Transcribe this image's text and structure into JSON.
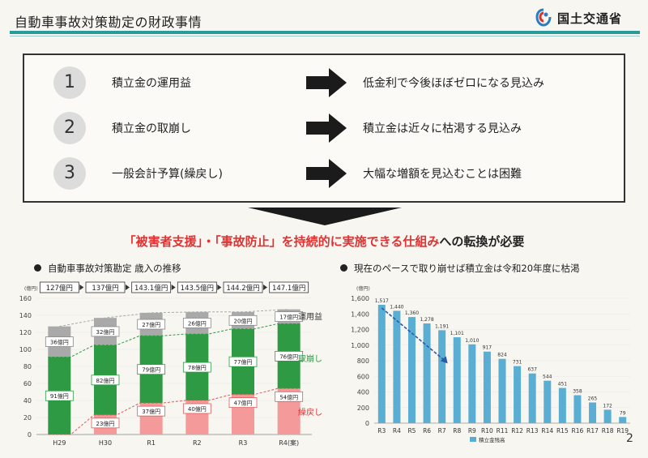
{
  "page_title": "自動車事故対策勘定の財政事情",
  "logo_text": "国土交通省",
  "rows": [
    {
      "num": "1",
      "label": "積立金の運用益",
      "result": "低金利で今後ほぼゼロになる見込み"
    },
    {
      "num": "2",
      "label": "積立金の取崩し",
      "result": "積立金は近々に枯渇する見込み"
    },
    {
      "num": "3",
      "label": "一般会計予算(繰戻し)",
      "result": "大幅な増額を見込むことは困難"
    }
  ],
  "headline": {
    "red": "「被害者支援」・「事故防止」を持続的に実施できる仕組み",
    "black": "への転換が必要"
  },
  "page_number": "2",
  "colors": {
    "accent": "#2a9a9a",
    "green": "#2e9a43",
    "gray": "#a9a9a9",
    "pink": "#f49a9a",
    "blue": "#5aaed4",
    "red": "#e03232"
  },
  "chart_data": [
    {
      "type": "bar",
      "stacked": true,
      "title": "自動車事故対策勘定 歳入の推移",
      "yunit": "(億円)",
      "ylim": [
        0,
        160
      ],
      "yticks": [
        0,
        20,
        40,
        60,
        80,
        100,
        120,
        140,
        160
      ],
      "categories": [
        "H29",
        "H30",
        "R1",
        "R2",
        "R3",
        "R4(案)"
      ],
      "totals": [
        "127億円",
        "137億円",
        "143.1億円",
        "143.5億円",
        "144.2億円",
        "147.1億円"
      ],
      "series": [
        {
          "name": "繰戻し",
          "values": [
            0,
            23,
            37,
            40,
            47,
            54
          ],
          "labels": [
            "",
            "23億円",
            "37億円",
            "40億円",
            "47億円",
            "54億円"
          ]
        },
        {
          "name": "取崩し",
          "values": [
            91,
            82,
            79,
            78,
            77,
            76
          ],
          "labels": [
            "91億円",
            "82億円",
            "79億円",
            "78億円",
            "77億円",
            "76億円"
          ]
        },
        {
          "name": "運用益",
          "values": [
            36,
            32,
            27,
            26,
            20,
            17
          ],
          "labels": [
            "36億円",
            "32億円",
            "27億円",
            "26億円",
            "20億円",
            "17億円"
          ]
        }
      ]
    },
    {
      "type": "bar",
      "title": "現在のペースで取り崩せば積立金は令和20年度に枯渇",
      "yunit": "(億円)",
      "ylim": [
        0,
        1600
      ],
      "yticks": [
        0,
        200,
        400,
        600,
        800,
        1000,
        1200,
        1400,
        1600
      ],
      "categories": [
        "R3",
        "R4",
        "R5",
        "R6",
        "R7",
        "R8",
        "R9",
        "R10",
        "R11",
        "R12",
        "R13",
        "R14",
        "R15",
        "R16",
        "R17",
        "R18",
        "R19"
      ],
      "series": [
        {
          "name": "積立金残高",
          "values": [
            1517,
            1440,
            1360,
            1278,
            1191,
            1101,
            1010,
            917,
            824,
            731,
            637,
            544,
            451,
            358,
            265,
            172,
            79
          ]
        }
      ],
      "tick_labels": [
        "0",
        "200",
        "400",
        "600",
        "800",
        "1,000",
        "1,200",
        "1,400",
        "1,600"
      ],
      "value_labels": [
        "1,517",
        "1,440",
        "1,360",
        "1,278",
        "1,191",
        "1,101",
        "1,010",
        "917",
        "824",
        "731",
        "637",
        "544",
        "451",
        "358",
        "265",
        "172",
        "79"
      ]
    }
  ]
}
